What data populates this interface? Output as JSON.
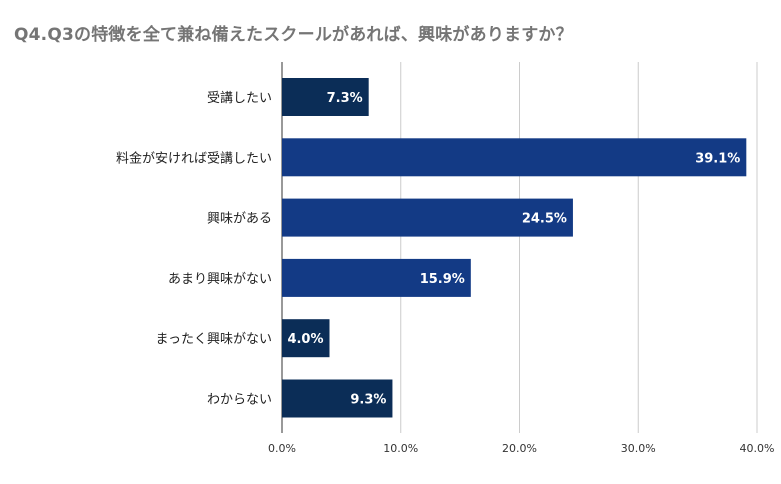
{
  "chart_data": {
    "type": "bar",
    "orientation": "horizontal",
    "title": "Q4.Q3の特徴を全て兼ね備えたスクールがあれば、興味がありますか？",
    "categories": [
      "受講したい",
      "料金が安ければ受講したい",
      "興味がある",
      "あまり興味がない",
      "まったく興味がない",
      "わからない"
    ],
    "values": [
      7.3,
      39.1,
      24.5,
      15.9,
      4.0,
      9.3
    ],
    "value_labels": [
      "7.3%",
      "39.1%",
      "24.5%",
      "15.9%",
      "4.0%",
      "9.3%"
    ],
    "bar_colors": [
      "#0b2d57",
      "#133a85",
      "#133a85",
      "#133a85",
      "#0b2d57",
      "#0b2d57"
    ],
    "xlim": [
      0,
      40
    ],
    "x_ticks": [
      0,
      10,
      20,
      30,
      40
    ],
    "x_tick_labels": [
      "0.0%",
      "10.0%",
      "20.0%",
      "30.0%",
      "40.0%"
    ],
    "xlabel": "",
    "ylabel": "",
    "grid": true,
    "legend": "none",
    "gridline_color": "#cccccc"
  }
}
